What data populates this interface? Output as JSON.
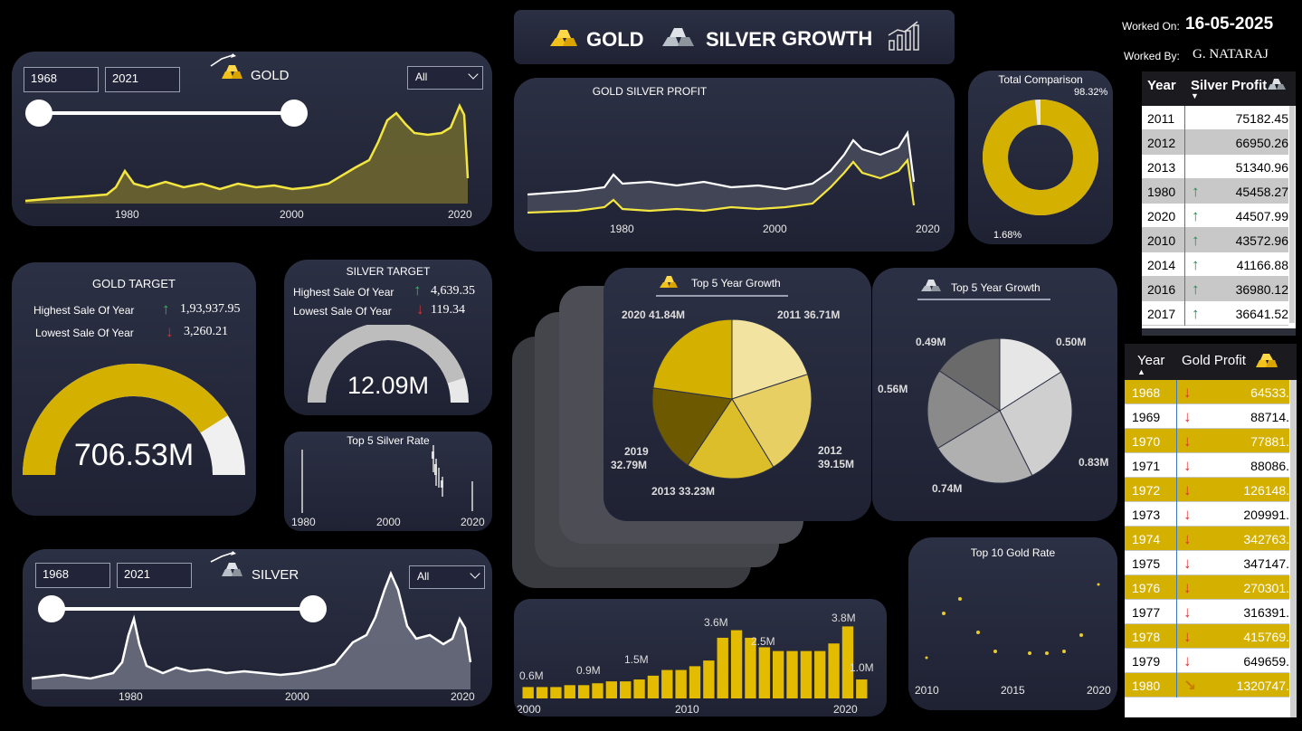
{
  "header": {
    "title_gold": "GOLD",
    "title_silver": "SILVER",
    "title_growth": "GROWTH",
    "worked_on_label": "Worked On:",
    "worked_on_value": "16-05-2025",
    "worked_by_label": "Worked By:",
    "worked_by_value": "G. NATARAJ"
  },
  "gold_filter": {
    "title": "GOLD",
    "from_year": "1968",
    "to_year": "2021",
    "dropdown_value": "All",
    "ticks": [
      "1980",
      "2000",
      "2020"
    ]
  },
  "silver_filter": {
    "title": "SILVER",
    "from_year": "1968",
    "to_year": "2021",
    "dropdown_value": "All",
    "ticks": [
      "1980",
      "2000",
      "2020"
    ]
  },
  "profit_chart": {
    "title": "GOLD SILVER PROFIT",
    "ticks": [
      "1980",
      "2000",
      "2020"
    ]
  },
  "total_comparison": {
    "title": "Total Comparison",
    "gold_pct_label": "98.32%",
    "silver_pct_label": "1.68%",
    "gold_pct": 98.32,
    "gold_color": "#d4b000",
    "silver_color": "#e8e8e8"
  },
  "gold_target": {
    "title": "GOLD TARGET",
    "highest_label": "Highest Sale Of Year",
    "highest_value": "1,93,937.95",
    "lowest_label": "Lowest Sale Of Year",
    "lowest_value": "3,260.21",
    "gauge_value": "706.53M",
    "gauge_fraction": 0.82
  },
  "silver_target": {
    "title": "SILVER TARGET",
    "highest_label": "Highest Sale Of Year",
    "highest_value": "4,639.35",
    "lowest_label": "Lowest Sale Of Year",
    "lowest_value": "119.34",
    "gauge_value": "12.09M",
    "gauge_fraction": 0.9
  },
  "top5_silver_rate": {
    "title": "Top 5 Silver Rate",
    "ticks": [
      "1980",
      "2000",
      "2020"
    ]
  },
  "gold_top5_growth": {
    "title": "Top 5 Year Growth",
    "labels": [
      "2011 36.71M",
      "2012",
      "39.15M",
      "2013 33.23M",
      "2019",
      "32.79M",
      "2020 41.84M"
    ]
  },
  "silver_top5_growth": {
    "title": "Top 5 Year Growth",
    "labels": [
      "0.50M",
      "0.83M",
      "0.74M",
      "0.56M",
      "0.49M"
    ]
  },
  "top10_gold_rate": {
    "title": "Top 10 Gold Rate",
    "ticks": [
      "2010",
      "2015",
      "2020"
    ]
  },
  "bar_chart": {
    "labels": [
      "0.6M",
      "0.9M",
      "1.5M",
      "3.6M",
      "2.5M",
      "3.8M",
      "1.0M"
    ],
    "ticks": [
      "2000",
      "2010",
      "2020"
    ]
  },
  "silver_table": {
    "col_year": "Year",
    "col_profit": "Silver Profit",
    "rows": [
      {
        "year": "2011",
        "value": "75182.45"
      },
      {
        "year": "2012",
        "value": "66950.26"
      },
      {
        "year": "2013",
        "value": "51340.96"
      },
      {
        "year": "1980",
        "value": "45458.27"
      },
      {
        "year": "2020",
        "value": "44507.99"
      },
      {
        "year": "2010",
        "value": "43572.96"
      },
      {
        "year": "2014",
        "value": "41166.88"
      },
      {
        "year": "2016",
        "value": "36980.12"
      },
      {
        "year": "2017",
        "value": "36641.52"
      }
    ]
  },
  "gold_table": {
    "col_year": "Year",
    "col_profit": "Gold Profit",
    "rows": [
      {
        "year": "1968",
        "value": "64533."
      },
      {
        "year": "1969",
        "value": "88714."
      },
      {
        "year": "1970",
        "value": "77881."
      },
      {
        "year": "1971",
        "value": "88086."
      },
      {
        "year": "1972",
        "value": "126148."
      },
      {
        "year": "1973",
        "value": "209991."
      },
      {
        "year": "1974",
        "value": "342763."
      },
      {
        "year": "1975",
        "value": "347147."
      },
      {
        "year": "1976",
        "value": "270301."
      },
      {
        "year": "1977",
        "value": "316391."
      },
      {
        "year": "1978",
        "value": "415769."
      },
      {
        "year": "1979",
        "value": "649659."
      },
      {
        "year": "1980",
        "value": "1320747."
      }
    ]
  },
  "chart_data": [
    {
      "type": "bar",
      "x": [
        1997,
        1998,
        1999,
        2000,
        2001,
        2002,
        2003,
        2004,
        2005,
        2006,
        2007,
        2008,
        2009,
        2010,
        2011,
        2012,
        2013,
        2014,
        2015,
        2016,
        2017,
        2018,
        2019,
        2020,
        2021
      ],
      "values": [
        0.6,
        0.6,
        0.6,
        0.7,
        0.7,
        0.8,
        0.9,
        0.9,
        1.0,
        1.2,
        1.5,
        1.5,
        1.7,
        2.0,
        3.2,
        3.6,
        3.2,
        2.7,
        2.5,
        2.5,
        2.5,
        2.5,
        2.9,
        3.8,
        1.0
      ],
      "ylim": [
        0,
        4.2
      ]
    },
    {
      "type": "pie",
      "categories": [
        "2011",
        "2012",
        "2013",
        "2019",
        "2020"
      ],
      "values": [
        36.71,
        39.15,
        33.23,
        32.79,
        41.84
      ],
      "colors": [
        "#f2e3a0",
        "#e8cf64",
        "#dcbd2a",
        "#6d5a00",
        "#d4b000"
      ]
    },
    {
      "type": "pie",
      "categories": [
        "0.50M",
        "0.83M",
        "0.74M",
        "0.56M",
        "0.49M"
      ],
      "values": [
        0.5,
        0.83,
        0.74,
        0.56,
        0.49
      ],
      "colors": [
        "#e6e6e6",
        "#cfcfcf",
        "#b0b0b0",
        "#8a8a8a",
        "#6a6a6a"
      ]
    }
  ]
}
